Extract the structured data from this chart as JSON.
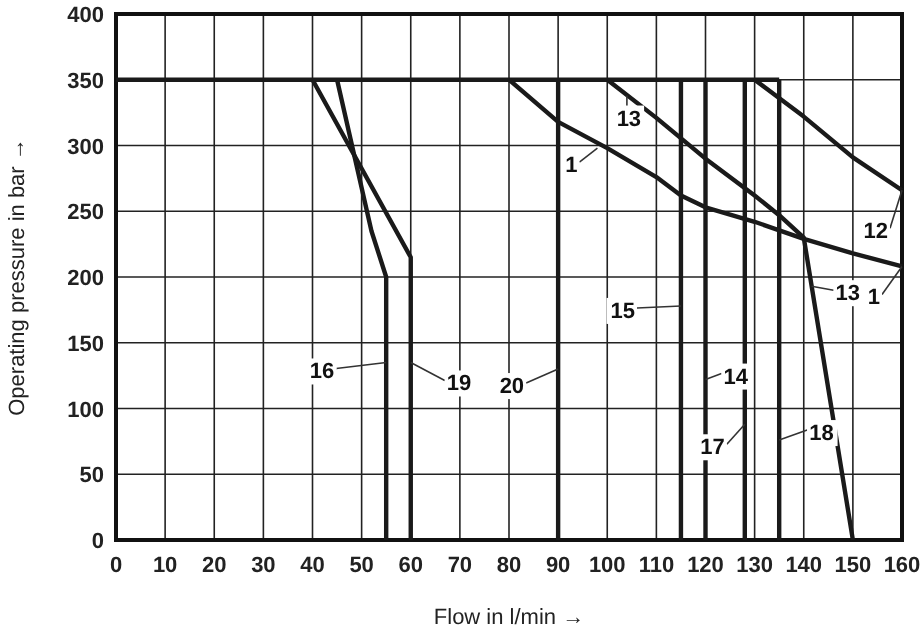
{
  "chart_data": {
    "type": "line",
    "xlabel": "Flow in l/min →",
    "ylabel": "Operating pressure in bar →",
    "xlim": [
      0,
      160
    ],
    "xticks": [
      0,
      10,
      20,
      30,
      40,
      50,
      60,
      70,
      80,
      90,
      100,
      110,
      120,
      130,
      140,
      150,
      160
    ],
    "ylim": [
      0,
      400
    ],
    "yticks": [
      0,
      50,
      100,
      150,
      200,
      250,
      300,
      350,
      400
    ],
    "grid": true,
    "marker": "none",
    "line_style": "solid",
    "series": [
      {
        "color": "#1a1a1a",
        "x": [
          0,
          135
        ],
        "values": [
          350,
          350
        ]
      },
      {
        "color": "#1a1a1a",
        "x": [
          45,
          52,
          55,
          55
        ],
        "values": [
          350,
          235,
          200,
          0
        ]
      },
      {
        "color": "#1a1a1a",
        "x": [
          40,
          60,
          60
        ],
        "values": [
          350,
          215,
          0
        ]
      },
      {
        "color": "#1a1a1a",
        "x": [
          90,
          90
        ],
        "values": [
          350,
          0
        ]
      },
      {
        "color": "#1a1a1a",
        "x": [
          80,
          90,
          100,
          110,
          115,
          120,
          130,
          140,
          150,
          160
        ],
        "values": [
          350,
          318,
          298,
          276,
          262,
          253,
          242,
          229,
          218,
          208
        ]
      },
      {
        "color": "#1a1a1a",
        "x": [
          100,
          110,
          120,
          130,
          135,
          140,
          150
        ],
        "values": [
          350,
          321,
          290,
          262,
          247,
          230,
          0
        ]
      },
      {
        "color": "#1a1a1a",
        "x": [
          130,
          140,
          150,
          160
        ],
        "values": [
          350,
          322,
          291,
          266
        ]
      },
      {
        "color": "#1a1a1a",
        "x": [
          115,
          115
        ],
        "values": [
          350,
          0
        ]
      },
      {
        "color": "#1a1a1a",
        "x": [
          120,
          120
        ],
        "values": [
          350,
          0
        ]
      },
      {
        "color": "#1a1a1a",
        "x": [
          128,
          128
        ],
        "values": [
          350,
          0
        ]
      },
      {
        "color": "#1a1a1a",
        "x": [
          135,
          135
        ],
        "values": [
          350,
          0
        ]
      }
    ],
    "annotations": [
      {
        "text": "16",
        "x": 55,
        "y": 135
      },
      {
        "text": "19",
        "x": 60,
        "y": 135
      },
      {
        "text": "20",
        "x": 90,
        "y": 130
      },
      {
        "text": "15",
        "x": 115,
        "y": 178
      },
      {
        "text": "14",
        "x": 120,
        "y": 122
      },
      {
        "text": "17",
        "x": 128,
        "y": 88
      },
      {
        "text": "18",
        "x": 135,
        "y": 76
      },
      {
        "text": "13",
        "x": 141.6,
        "y": 193
      },
      {
        "text": "13",
        "x": 104,
        "y": 338
      },
      {
        "text": "1",
        "x": 98,
        "y": 298
      },
      {
        "text": "12",
        "x": 160,
        "y": 266
      },
      {
        "text": "1",
        "x": 160,
        "y": 208
      }
    ]
  }
}
